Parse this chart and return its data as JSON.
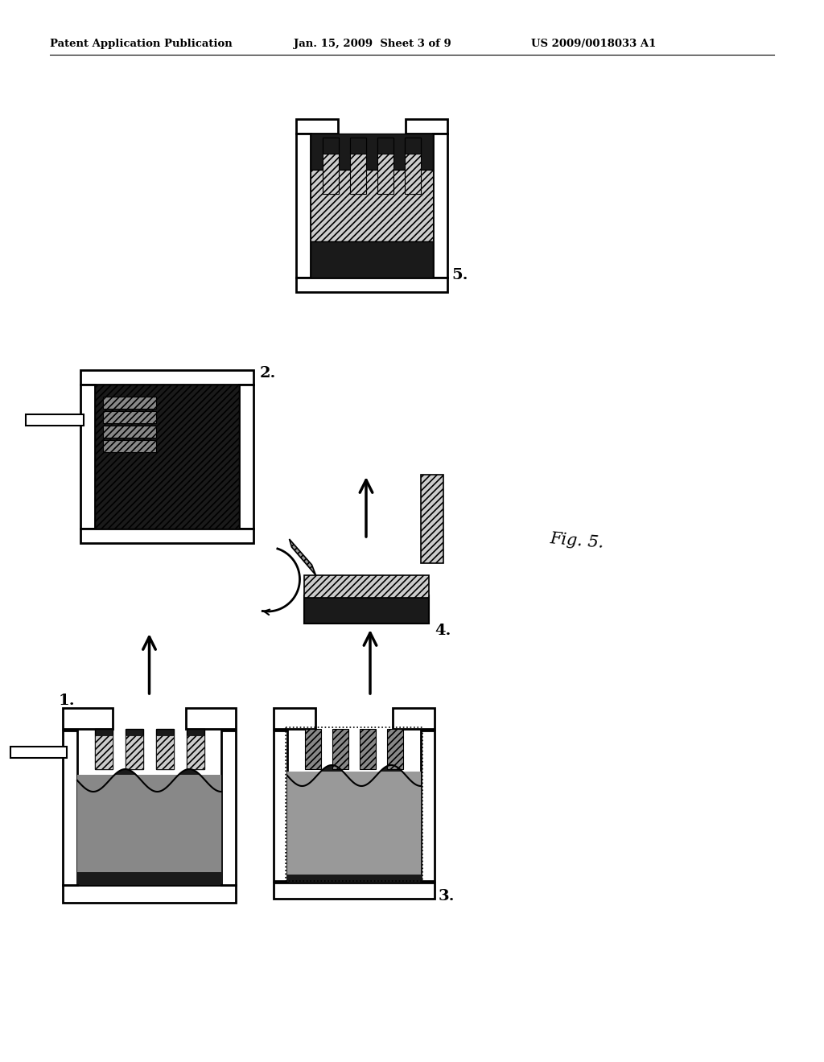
{
  "bg_color": "#ffffff",
  "header_text": "Patent Application Publication",
  "header_date": "Jan. 15, 2009  Sheet 3 of 9",
  "header_patent": "US 2009/0018033 A1",
  "fig_label": "Fig. 5.",
  "step_labels": [
    "1.",
    "2.",
    "3.",
    "4.",
    "5."
  ]
}
